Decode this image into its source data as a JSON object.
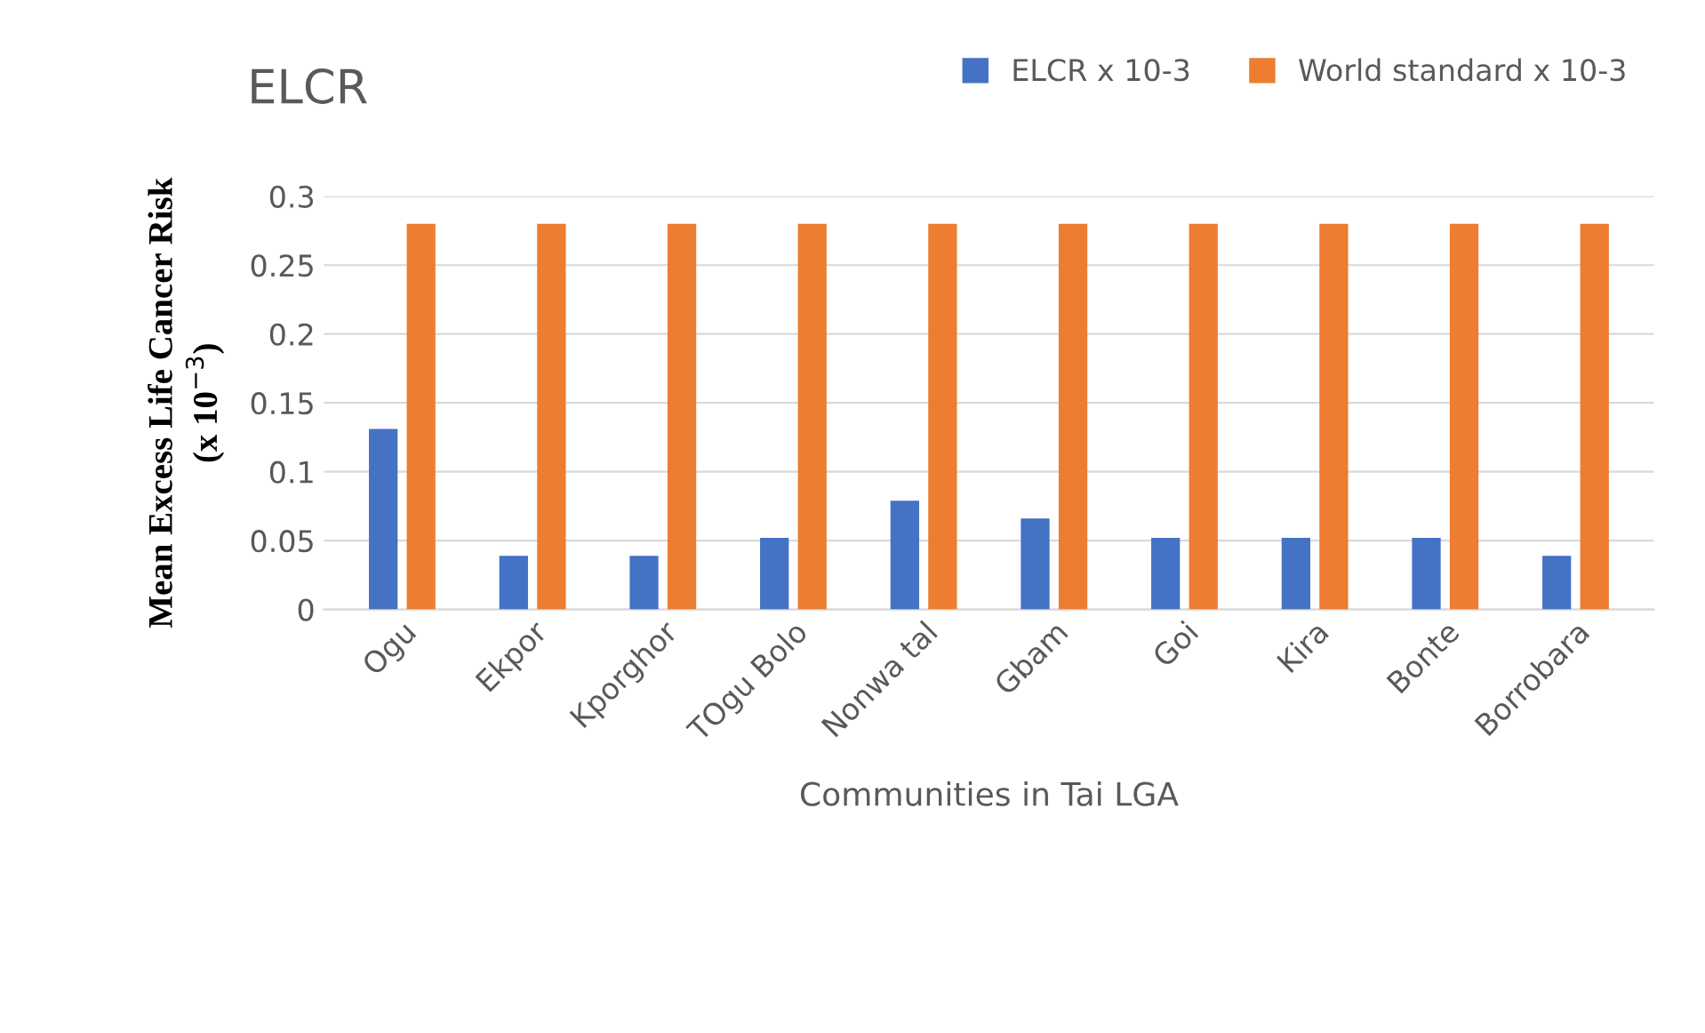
{
  "chart_data": {
    "type": "bar",
    "title": "ELCR",
    "xlabel": "Communities in Tai LGA",
    "ylabel": "Mean Excess Life Cancer Risk\n(x 10$^{−3}$)",
    "categories": [
      "Ogu",
      "Ekpor",
      "Kporghor",
      "TOgu Bolo",
      "Nonwa tal",
      "Gbam",
      "Goi",
      "Kira",
      "Bonte",
      "Borrobara"
    ],
    "series": [
      {
        "name": "ELCR x 10-3",
        "color": "#4472c4",
        "values": [
          0.131,
          0.039,
          0.039,
          0.052,
          0.079,
          0.066,
          0.052,
          0.052,
          0.052,
          0.039
        ]
      },
      {
        "name": "World standard x 10-3",
        "color": "#ed7d31",
        "values": [
          0.28,
          0.28,
          0.28,
          0.28,
          0.28,
          0.28,
          0.28,
          0.28,
          0.28,
          0.28
        ]
      }
    ],
    "ylim": [
      0,
      0.3
    ],
    "yticks": [
      0,
      0.05,
      0.1,
      0.15,
      0.2,
      0.25,
      0.3
    ],
    "grid": "y",
    "legend": "top right"
  }
}
